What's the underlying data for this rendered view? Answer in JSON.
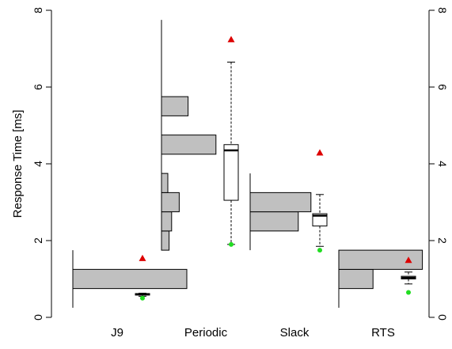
{
  "chart_data": {
    "type": "box+histogram",
    "ylabel": "Response Time [ms]",
    "ylim": [
      0,
      8
    ],
    "yticks": [
      0,
      2,
      4,
      6,
      8
    ],
    "colors": {
      "hist_fill": "#c0c0c0",
      "box_fill": "#ffffff",
      "max_marker": "#dd0000",
      "min_marker": "#22dd22"
    },
    "groups": [
      {
        "name": "J9",
        "hist_span": [
          0.25,
          1.75
        ],
        "histogram": [
          {
            "bin": [
              0.75,
              1.25
            ],
            "density": 0.9
          }
        ],
        "box": {
          "q1": 0.58,
          "median": 0.6,
          "q3": 0.62,
          "whisker_low": 0.55,
          "whisker_high": 0.63
        },
        "max": 1.55,
        "min": 0.5
      },
      {
        "name": "Periodic",
        "hist_span": [
          1.75,
          7.75
        ],
        "histogram": [
          {
            "bin": [
              1.75,
              2.25
            ],
            "density": 0.06
          },
          {
            "bin": [
              2.25,
              2.75
            ],
            "density": 0.08
          },
          {
            "bin": [
              2.75,
              3.25
            ],
            "density": 0.14
          },
          {
            "bin": [
              3.25,
              3.75
            ],
            "density": 0.05
          },
          {
            "bin": [
              4.25,
              4.75
            ],
            "density": 0.43
          },
          {
            "bin": [
              5.25,
              5.75
            ],
            "density": 0.21
          }
        ],
        "box": {
          "q1": 3.05,
          "median": 4.35,
          "q3": 4.5,
          "whisker_low": 1.9,
          "whisker_high": 6.65
        },
        "max": 7.25,
        "min": 1.9
      },
      {
        "name": "Slack",
        "hist_span": [
          1.75,
          3.75
        ],
        "histogram": [
          {
            "bin": [
              2.25,
              2.75
            ],
            "density": 0.38
          },
          {
            "bin": [
              2.75,
              3.25
            ],
            "density": 0.48
          }
        ],
        "box": {
          "q1": 2.38,
          "median": 2.65,
          "q3": 2.7,
          "whisker_low": 1.85,
          "whisker_high": 3.2
        },
        "max": 4.3,
        "min": 1.75
      },
      {
        "name": "RTS",
        "hist_span": [
          0.25,
          1.75
        ],
        "histogram": [
          {
            "bin": [
              0.75,
              1.25
            ],
            "density": 0.27
          },
          {
            "bin": [
              1.25,
              1.75
            ],
            "density": 0.66
          }
        ],
        "box": {
          "q1": 1.0,
          "median": 1.03,
          "q3": 1.07,
          "whisker_low": 0.87,
          "whisker_high": 1.18
        },
        "max": 1.5,
        "min": 0.65
      }
    ]
  }
}
